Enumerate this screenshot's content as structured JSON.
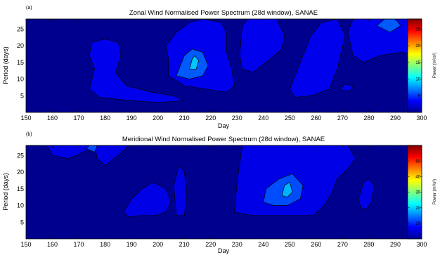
{
  "chart_data": [
    {
      "type": "heatmap",
      "panel_label": "(a)",
      "title": "Zonal Wind Normalised Power Spectrum (28d window), SANAE",
      "xlabel": "Day",
      "ylabel": "Period (days)",
      "xlim": [
        150,
        300
      ],
      "ylim": [
        0,
        28
      ],
      "xticks": [
        150,
        160,
        170,
        180,
        190,
        200,
        210,
        220,
        230,
        240,
        250,
        260,
        270,
        280,
        290,
        300
      ],
      "yticks": [
        5,
        10,
        15,
        20,
        25
      ],
      "colorbar": {
        "label": "Power (m²/s²)",
        "ticks": [
          5,
          10,
          15,
          20,
          25
        ],
        "range": [
          0,
          28
        ]
      },
      "contour_levels": [
        3,
        6,
        9,
        13
      ],
      "regions": [
        {
          "level": 3,
          "points": [
            [
              175,
              21
            ],
            [
              180,
              22
            ],
            [
              185,
              21
            ],
            [
              186,
              17
            ],
            [
              184,
              12
            ],
            [
              188,
              8
            ],
            [
              198,
              6
            ],
            [
              206,
              5
            ],
            [
              210,
              3.5
            ],
            [
              200,
              3
            ],
            [
              190,
              3.5
            ],
            [
              178,
              4.5
            ],
            [
              174,
              7
            ],
            [
              176,
              13
            ],
            [
              174,
              17
            ]
          ]
        },
        {
          "level": 3,
          "points": [
            [
              203,
              20
            ],
            [
              207,
              24
            ],
            [
              212,
              27
            ],
            [
              217,
              28
            ],
            [
              224,
              27
            ],
            [
              226,
              24
            ],
            [
              226,
              18
            ],
            [
              228,
              13
            ],
            [
              229,
              8
            ],
            [
              226,
              6
            ],
            [
              218,
              7
            ],
            [
              210,
              8
            ],
            [
              204,
              11
            ],
            [
              204,
              16
            ]
          ]
        },
        {
          "level": 3,
          "points": [
            [
              231,
              17
            ],
            [
              232,
              26
            ],
            [
              234,
              28
            ],
            [
              245,
              28
            ],
            [
              248,
              23
            ],
            [
              247,
              19
            ],
            [
              241,
              15
            ],
            [
              236,
              12
            ],
            [
              232,
              13
            ]
          ]
        },
        {
          "level": 3,
          "points": [
            [
              250,
              7
            ],
            [
              254,
              15
            ],
            [
              258,
              23
            ],
            [
              262,
              27
            ],
            [
              268,
              28
            ],
            [
              271,
              23
            ],
            [
              268,
              13
            ],
            [
              265,
              7
            ],
            [
              258,
              5
            ],
            [
              252,
              4.5
            ]
          ]
        },
        {
          "level": 3,
          "points": [
            [
              272,
              24
            ],
            [
              274,
              28
            ],
            [
              300,
              28
            ],
            [
              300,
              17
            ],
            [
              292,
              18
            ],
            [
              284,
              17
            ],
            [
              278,
              15
            ],
            [
              274,
              17
            ]
          ]
        },
        {
          "level": 3,
          "points": [
            [
              269,
              7
            ],
            [
              271,
              8.5
            ],
            [
              274,
              8
            ],
            [
              273,
              6.5
            ],
            [
              270,
              6.5
            ]
          ]
        },
        {
          "level": 6,
          "points": [
            [
              207,
              11
            ],
            [
              210,
              17
            ],
            [
              213,
              19
            ],
            [
              217,
              18
            ],
            [
              219,
              14
            ],
            [
              217,
              11
            ],
            [
              212,
              10
            ]
          ]
        },
        {
          "level": 6,
          "points": [
            [
              283,
              26
            ],
            [
              286,
              28
            ],
            [
              290,
              28
            ],
            [
              292,
              26
            ],
            [
              288,
              24
            ]
          ]
        },
        {
          "level": 9,
          "points": [
            [
              212,
              13
            ],
            [
              213,
              16
            ],
            [
              214,
              17
            ],
            [
              215.5,
              15.5
            ],
            [
              214.5,
              13
            ]
          ]
        }
      ]
    },
    {
      "type": "heatmap",
      "panel_label": "(b)",
      "title": "Meridional Wind Normalised Power Spectrum (28d window), SANAE",
      "xlabel": "Day",
      "ylabel": "Period (days)",
      "xlim": [
        150,
        300
      ],
      "ylim": [
        0,
        28
      ],
      "xticks": [
        150,
        160,
        170,
        180,
        190,
        200,
        210,
        220,
        230,
        240,
        250,
        260,
        270,
        280,
        290,
        300
      ],
      "yticks": [
        5,
        10,
        15,
        20,
        25
      ],
      "colorbar": {
        "label": "Power (m²/s²)",
        "ticks": [
          10,
          20,
          30,
          40,
          50
        ],
        "range": [
          0,
          60
        ]
      },
      "contour_levels": [
        6,
        12,
        18,
        24
      ],
      "regions": [
        {
          "level": 6,
          "points": [
            [
              158,
              28
            ],
            [
              160,
              25
            ],
            [
              166,
              24
            ],
            [
              172,
              26
            ],
            [
              175,
              28
            ]
          ]
        },
        {
          "level": 6,
          "points": [
            [
              176,
              28
            ],
            [
              177,
              24
            ],
            [
              180,
              22
            ],
            [
              185,
              25
            ],
            [
              189,
              28
            ]
          ]
        },
        {
          "level": 6,
          "points": [
            [
              187,
              8
            ],
            [
              190,
              12
            ],
            [
              194,
              15
            ],
            [
              198,
              17
            ],
            [
              203,
              15
            ],
            [
              205,
              11
            ],
            [
              203,
              8
            ],
            [
              199,
              7
            ],
            [
              193,
              7
            ],
            [
              189,
              6.5
            ]
          ]
        },
        {
          "level": 6,
          "points": [
            [
              206,
              16
            ],
            [
              208,
              22
            ],
            [
              210,
              20
            ],
            [
              211,
              13
            ],
            [
              210,
              7
            ],
            [
              207,
              7
            ]
          ]
        },
        {
          "level": 6,
          "points": [
            [
              229,
              8
            ],
            [
              230,
              17
            ],
            [
              232,
              28
            ],
            [
              272,
              28
            ],
            [
              275,
              24
            ],
            [
              272,
              21
            ],
            [
              268,
              18
            ],
            [
              266,
              14
            ],
            [
              263,
              10
            ],
            [
              259,
              7
            ],
            [
              252,
              7
            ],
            [
              244,
              7
            ],
            [
              236,
              7
            ]
          ]
        },
        {
          "level": 6,
          "points": [
            [
              276,
              12
            ],
            [
              278,
              17
            ],
            [
              280,
              18
            ],
            [
              282,
              16
            ],
            [
              281,
              11
            ],
            [
              279,
              9
            ],
            [
              277,
              9
            ]
          ]
        },
        {
          "level": 12,
          "points": [
            [
              173,
              27
            ],
            [
              174,
              28
            ],
            [
              177,
              28
            ],
            [
              176,
              26
            ]
          ]
        },
        {
          "level": 12,
          "points": [
            [
              240,
              11
            ],
            [
              241,
              15
            ],
            [
              246,
              18
            ],
            [
              251,
              19.5
            ],
            [
              255,
              16
            ],
            [
              254,
              12
            ],
            [
              249,
              10
            ],
            [
              244,
              10
            ]
          ]
        },
        {
          "level": 18,
          "points": [
            [
              247,
              13
            ],
            [
              248,
              16
            ],
            [
              250,
              17
            ],
            [
              251,
              14
            ],
            [
              249,
              12.5
            ]
          ]
        }
      ]
    }
  ]
}
